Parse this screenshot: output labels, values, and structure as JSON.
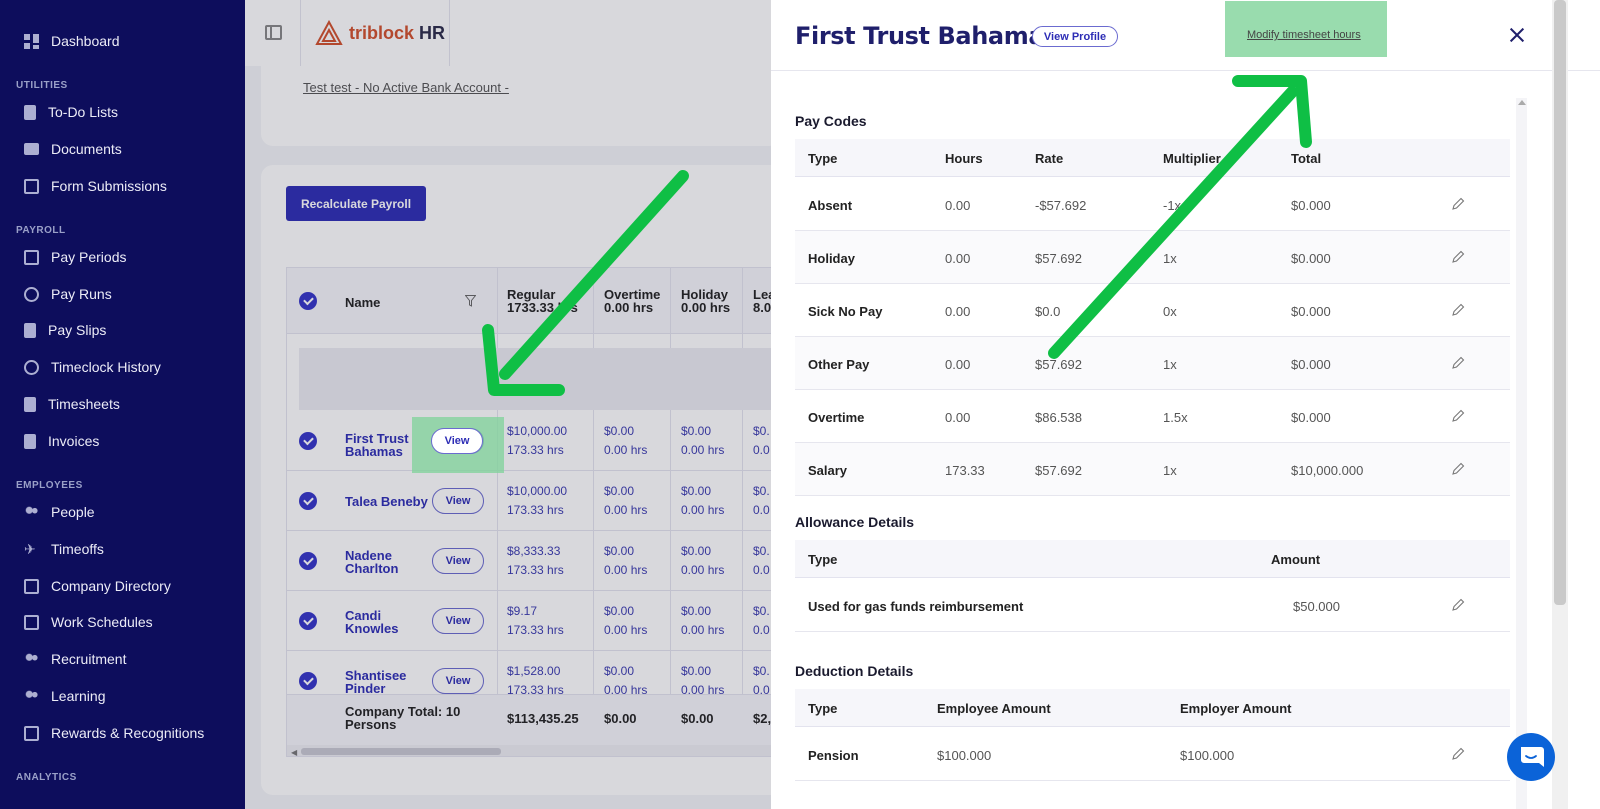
{
  "sidebar": {
    "top": {
      "label": "Dashboard"
    },
    "sections": [
      {
        "title": "UTILITIES",
        "items": [
          "To-Do Lists",
          "Documents",
          "Form Submissions"
        ]
      },
      {
        "title": "PAYROLL",
        "items": [
          "Pay Periods",
          "Pay Runs",
          "Pay Slips",
          "Timeclock History",
          "Timesheets",
          "Invoices"
        ]
      },
      {
        "title": "EMPLOYEES",
        "items": [
          "People",
          "Timeoffs",
          "Company Directory",
          "Work Schedules",
          "Recruitment",
          "Learning",
          "Rewards & Recognitions"
        ]
      },
      {
        "title": "ANALYTICS",
        "items": []
      }
    ]
  },
  "header": {
    "brand": "triblock",
    "brand_suffix": "HR"
  },
  "bank_notice": "Test test - No Active Bank Account -",
  "recalc_label": "Recalculate Payroll",
  "payroll_table": {
    "headers": {
      "name": "Name",
      "regular": "Regular",
      "regular_sub": "1733.33 hrs",
      "overtime": "Overtime",
      "overtime_sub": "0.00 hrs",
      "holiday": "Holiday",
      "holiday_sub": "0.00 hrs",
      "leave": "Lea",
      "leave_sub": "8.0"
    },
    "view_label": "View",
    "rows": [
      {
        "name1": "First Trust",
        "name2": "Bahamas",
        "reg1": "$10,000.00",
        "reg2": "173.33 hrs",
        "ot1": "$0.00",
        "ot2": "0.00 hrs",
        "hol1": "$0.00",
        "hol2": "0.00 hrs",
        "lv1": "$0.",
        "lv2": "0.0"
      },
      {
        "name1": "Talea Beneby",
        "name2": "",
        "reg1": "$10,000.00",
        "reg2": "173.33 hrs",
        "ot1": "$0.00",
        "ot2": "0.00 hrs",
        "hol1": "$0.00",
        "hol2": "0.00 hrs",
        "lv1": "$0.",
        "lv2": "0.0"
      },
      {
        "name1": "Nadene",
        "name2": "Charlton",
        "reg1": "$8,333.33",
        "reg2": "173.33 hrs",
        "ot1": "$0.00",
        "ot2": "0.00 hrs",
        "hol1": "$0.00",
        "hol2": "0.00 hrs",
        "lv1": "$0.",
        "lv2": "0.0"
      },
      {
        "name1": "Candi",
        "name2": "Knowles",
        "reg1": "$9.17",
        "reg2": "173.33 hrs",
        "ot1": "$0.00",
        "ot2": "0.00 hrs",
        "hol1": "$0.00",
        "hol2": "0.00 hrs",
        "lv1": "$0.",
        "lv2": "0.0"
      },
      {
        "name1": "Shantisee",
        "name2": "Pinder",
        "reg1": "$1,528.00",
        "reg2": "173.33 hrs",
        "ot1": "$0.00",
        "ot2": "0.00 hrs",
        "hol1": "$0.00",
        "hol2": "0.00 hrs",
        "lv1": "$0.",
        "lv2": "0.0"
      }
    ],
    "footer": {
      "label1": "Company Total: 10",
      "label2": "Persons",
      "regular": "$113,435.25",
      "overtime": "$0.00",
      "holiday": "$0.00",
      "leave": "$2,"
    }
  },
  "panel": {
    "title": "First Trust Bahamas",
    "view_profile": "View Profile",
    "modify_link": "Modify timesheet hours",
    "pay_codes": {
      "title": "Pay Codes",
      "headers": [
        "Type",
        "Hours",
        "Rate",
        "Multiplier",
        "Total"
      ],
      "rows": [
        {
          "type": "Absent",
          "hours": "0.00",
          "rate": "-$57.692",
          "mult": "-1x",
          "total": "$0.000"
        },
        {
          "type": "Holiday",
          "hours": "0.00",
          "rate": "$57.692",
          "mult": "1x",
          "total": "$0.000"
        },
        {
          "type": "Sick No Pay",
          "hours": "0.00",
          "rate": "$0.0",
          "mult": "0x",
          "total": "$0.000"
        },
        {
          "type": "Other Pay",
          "hours": "0.00",
          "rate": "$57.692",
          "mult": "1x",
          "total": "$0.000"
        },
        {
          "type": "Overtime",
          "hours": "0.00",
          "rate": "$86.538",
          "mult": "1.5x",
          "total": "$0.000"
        },
        {
          "type": "Salary",
          "hours": "173.33",
          "rate": "$57.692",
          "mult": "1x",
          "total": "$10,000.000"
        }
      ]
    },
    "allowance": {
      "title": "Allowance Details",
      "headers": [
        "Type",
        "Amount"
      ],
      "rows": [
        {
          "type": "Used for gas funds reimbursement",
          "amount": "$50.000"
        }
      ]
    },
    "deduction": {
      "title": "Deduction Details",
      "headers": [
        "Type",
        "Employee Amount",
        "Employer Amount"
      ],
      "rows": [
        {
          "type": "Pension",
          "employee": "$100.000",
          "employer": "$100.000"
        }
      ]
    }
  },
  "colors": {
    "sidebar": "#0d0d5c",
    "accent": "#2d2db5",
    "highlight": "#7fd39a",
    "annotation_arrow": "#0fbf45"
  }
}
